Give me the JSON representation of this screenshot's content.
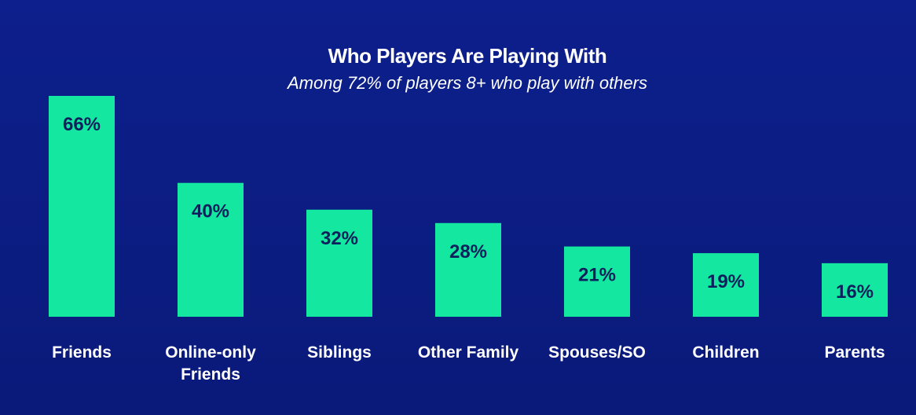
{
  "chart_data": {
    "type": "bar",
    "title": "Who Players Are Playing With",
    "subtitle": "Among 72% of players 8+ who play with others",
    "categories": [
      [
        "Friends"
      ],
      [
        "Online-only",
        "Friends"
      ],
      [
        "Siblings"
      ],
      [
        "Other Family"
      ],
      [
        "Spouses/SO"
      ],
      [
        "Children"
      ],
      [
        "Parents"
      ]
    ],
    "values": [
      66,
      40,
      32,
      28,
      21,
      19,
      16
    ],
    "value_labels": [
      "66%",
      "40%",
      "32%",
      "28%",
      "21%",
      "19%",
      "16%"
    ],
    "ylim": [
      0,
      66
    ],
    "grid": false,
    "legend": "none"
  },
  "colors": {
    "background": "#0d1f8c",
    "bar": "#14e8a0",
    "bar_label": "#0d1f5c",
    "text": "#ffffff"
  }
}
